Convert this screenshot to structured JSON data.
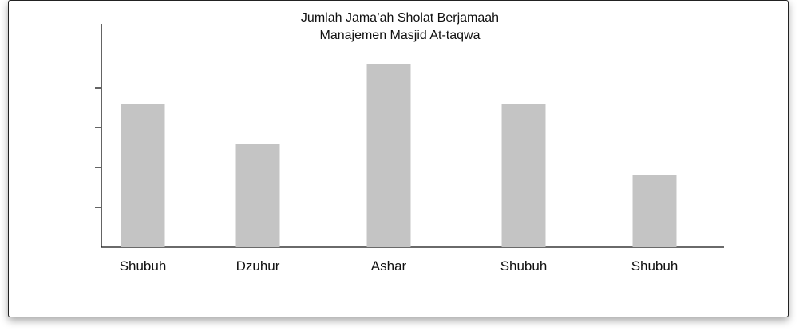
{
  "chart_data": {
    "type": "bar",
    "title": "Jumlah Jama’ah Sholat Berjamaah",
    "subtitle": "Manajemen Masjid At-taqwa",
    "xlabel": "",
    "ylabel": "",
    "categories": [
      "Shubuh",
      "Dzuhur",
      "Ashar",
      "Shubuh",
      "Shubuh"
    ],
    "values": [
      36,
      26,
      46,
      35.8,
      18
    ],
    "ylim": [
      0,
      56
    ],
    "ytick_count": 4,
    "bar_color": "#c4c4c4",
    "grid": false,
    "legend": "none"
  }
}
